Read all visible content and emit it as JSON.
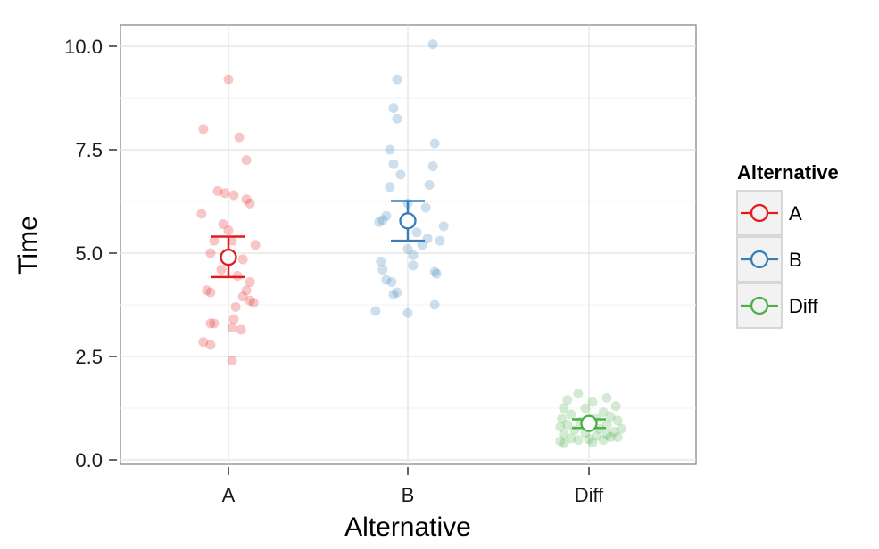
{
  "chart_data": {
    "type": "scatter",
    "xlabel": "Alternative",
    "ylabel": "Time",
    "categories": [
      "A",
      "B",
      "Diff"
    ],
    "ylim": [
      0,
      10.4
    ],
    "y_ticks": [
      "0.0",
      "2.5",
      "5.0",
      "7.5",
      "10.0"
    ],
    "y_tick_values": [
      0,
      2.5,
      5,
      7.5,
      10
    ],
    "grid": true,
    "legend": {
      "title": "Alternative",
      "position": "right",
      "entries": [
        "A",
        "B",
        "Diff"
      ]
    },
    "series": [
      {
        "name": "A",
        "color": "#e41a1c",
        "mean": 4.9,
        "ci": [
          4.42,
          5.4
        ],
        "points": [
          [
            0.0,
            9.2
          ],
          [
            -0.14,
            8.0
          ],
          [
            0.06,
            7.8
          ],
          [
            0.1,
            7.25
          ],
          [
            -0.06,
            6.5
          ],
          [
            0.03,
            6.4
          ],
          [
            -0.02,
            6.45
          ],
          [
            0.1,
            6.3
          ],
          [
            0.12,
            6.2
          ],
          [
            -0.15,
            5.95
          ],
          [
            -0.03,
            5.7
          ],
          [
            0.0,
            5.55
          ],
          [
            -0.08,
            5.3
          ],
          [
            0.02,
            5.3
          ],
          [
            0.15,
            5.2
          ],
          [
            -0.1,
            5.0
          ],
          [
            0.08,
            4.85
          ],
          [
            -0.04,
            4.6
          ],
          [
            0.12,
            4.3
          ],
          [
            0.05,
            4.45
          ],
          [
            -0.1,
            4.05
          ],
          [
            0.1,
            4.1
          ],
          [
            -0.12,
            4.1
          ],
          [
            0.08,
            3.95
          ],
          [
            0.14,
            3.8
          ],
          [
            0.12,
            3.85
          ],
          [
            0.04,
            3.7
          ],
          [
            -0.08,
            3.3
          ],
          [
            0.03,
            3.4
          ],
          [
            -0.1,
            3.3
          ],
          [
            0.07,
            3.15
          ],
          [
            0.02,
            3.2
          ],
          [
            -0.14,
            2.85
          ],
          [
            -0.1,
            2.78
          ],
          [
            0.02,
            2.4
          ]
        ]
      },
      {
        "name": "B",
        "color": "#377eb8",
        "mean": 5.78,
        "ci": [
          5.3,
          6.26
        ],
        "points": [
          [
            0.14,
            10.05
          ],
          [
            -0.06,
            9.2
          ],
          [
            -0.08,
            8.5
          ],
          [
            -0.06,
            8.25
          ],
          [
            0.15,
            7.65
          ],
          [
            -0.1,
            7.5
          ],
          [
            -0.08,
            7.15
          ],
          [
            0.14,
            7.1
          ],
          [
            -0.04,
            6.9
          ],
          [
            0.12,
            6.65
          ],
          [
            -0.1,
            6.6
          ],
          [
            0.0,
            6.2
          ],
          [
            0.1,
            6.1
          ],
          [
            -0.12,
            5.9
          ],
          [
            -0.16,
            5.75
          ],
          [
            -0.14,
            5.8
          ],
          [
            0.2,
            5.65
          ],
          [
            0.05,
            5.5
          ],
          [
            0.11,
            5.35
          ],
          [
            0.18,
            5.3
          ],
          [
            0.0,
            5.1
          ],
          [
            0.08,
            5.2
          ],
          [
            0.03,
            4.95
          ],
          [
            -0.15,
            4.8
          ],
          [
            0.03,
            4.7
          ],
          [
            -0.14,
            4.6
          ],
          [
            0.15,
            4.55
          ],
          [
            0.16,
            4.5
          ],
          [
            -0.12,
            4.35
          ],
          [
            -0.09,
            4.3
          ],
          [
            -0.06,
            4.05
          ],
          [
            -0.08,
            4.0
          ],
          [
            0.15,
            3.75
          ],
          [
            -0.18,
            3.6
          ],
          [
            0.0,
            3.55
          ]
        ]
      },
      {
        "name": "Diff",
        "color": "#4daf4a",
        "mean": 0.88,
        "ci": [
          0.77,
          0.98
        ],
        "points": [
          [
            -0.06,
            1.6
          ],
          [
            0.1,
            1.5
          ],
          [
            -0.12,
            1.45
          ],
          [
            0.02,
            1.4
          ],
          [
            0.15,
            1.3
          ],
          [
            -0.14,
            1.25
          ],
          [
            -0.02,
            1.25
          ],
          [
            0.08,
            1.15
          ],
          [
            -0.1,
            1.1
          ],
          [
            0.12,
            1.05
          ],
          [
            0.04,
            1.0
          ],
          [
            -0.15,
            1.0
          ],
          [
            0.16,
            0.95
          ],
          [
            -0.05,
            0.92
          ],
          [
            0.02,
            0.9
          ],
          [
            -0.12,
            0.85
          ],
          [
            0.1,
            0.85
          ],
          [
            -0.16,
            0.8
          ],
          [
            0.18,
            0.75
          ],
          [
            0.06,
            0.75
          ],
          [
            -0.08,
            0.72
          ],
          [
            0.14,
            0.68
          ],
          [
            -0.02,
            0.65
          ],
          [
            -0.14,
            0.62
          ],
          [
            0.1,
            0.6
          ],
          [
            0.04,
            0.58
          ],
          [
            0.16,
            0.55
          ],
          [
            -0.1,
            0.52
          ],
          [
            0.0,
            0.5
          ],
          [
            -0.06,
            0.48
          ],
          [
            0.08,
            0.48
          ],
          [
            -0.16,
            0.45
          ],
          [
            0.02,
            0.42
          ],
          [
            -0.14,
            0.4
          ],
          [
            0.12,
            0.55
          ]
        ]
      }
    ]
  }
}
